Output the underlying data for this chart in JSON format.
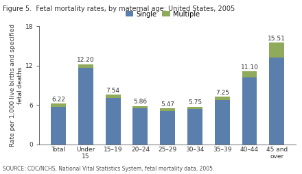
{
  "title": "Figure 5.  Fetal mortality rates, by maternal age: United States, 2005",
  "categories": [
    "Total",
    "Under\n15",
    "15–19",
    "20–24",
    "25–29",
    "30–34",
    "35–39",
    "40–44",
    "45 and\nover"
  ],
  "total_values": [
    6.22,
    12.2,
    7.54,
    5.86,
    5.47,
    5.75,
    7.25,
    11.1,
    15.51
  ],
  "single_values": [
    5.75,
    11.65,
    7.06,
    5.47,
    5.08,
    5.35,
    6.77,
    10.2,
    13.2
  ],
  "multiple_values": [
    0.47,
    0.55,
    0.48,
    0.39,
    0.39,
    0.4,
    0.48,
    0.9,
    2.31
  ],
  "single_color": "#5b7fad",
  "multiple_color": "#8faa5a",
  "ylabel": "Rate per 1,000 live births and specified\nfetal deaths",
  "ylim": [
    0,
    18
  ],
  "yticks": [
    0,
    6,
    12,
    18
  ],
  "source": "SOURCE: CDC/NCHS, National Vital Statistics System, fetal mortality data, 2005.",
  "legend_labels": [
    "Single",
    "Multiple"
  ],
  "value_labels": [
    "6.22",
    "12.20",
    "7.54",
    "5.86",
    "5.47",
    "5.75",
    "7.25",
    "11.10",
    "15.51"
  ],
  "title_fontsize": 7,
  "label_fontsize": 6.5,
  "tick_fontsize": 6.5,
  "value_fontsize": 6.5,
  "source_fontsize": 5.5,
  "bar_width": 0.55
}
